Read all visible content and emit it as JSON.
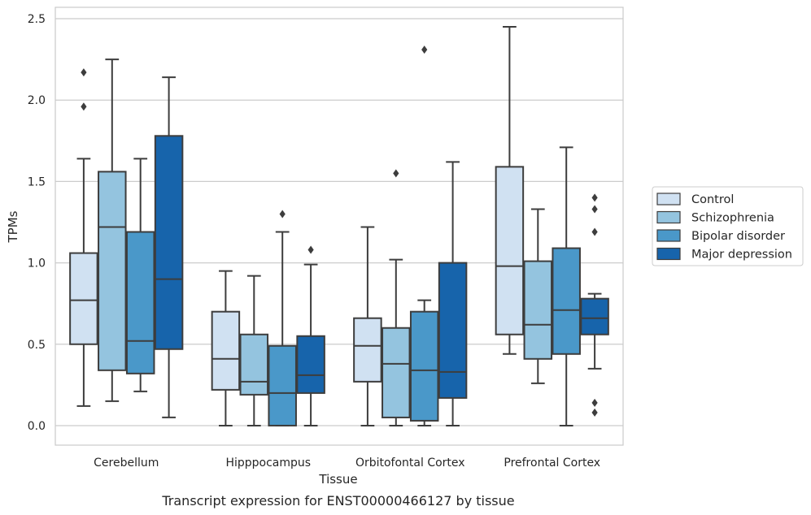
{
  "caption": "Transcript expression for ENST00000466127 by tissue",
  "chart_data": {
    "type": "box",
    "xlabel": "Tissue",
    "ylabel": "TPMs",
    "ylim": [
      -0.12,
      2.57
    ],
    "yticks": [
      0.0,
      0.5,
      1.0,
      1.5,
      2.0,
      2.5
    ],
    "ytick_labels": [
      "0.0",
      "0.5",
      "1.0",
      "1.5",
      "2.0",
      "2.5"
    ],
    "grid": "horizontal",
    "legend_position": "right",
    "categories": [
      "Cerebellum",
      "Hipppocampus",
      "Orbitofontal Cortex",
      "Prefrontal Cortex"
    ],
    "series": [
      {
        "name": "Control",
        "color": "#d0e1f2",
        "boxes": [
          {
            "whisker_low": 0.12,
            "q1": 0.5,
            "median": 0.77,
            "q3": 1.06,
            "whisker_high": 1.64,
            "outliers": [
              1.96,
              2.17
            ]
          },
          {
            "whisker_low": 0.0,
            "q1": 0.22,
            "median": 0.41,
            "q3": 0.7,
            "whisker_high": 0.95,
            "outliers": []
          },
          {
            "whisker_low": 0.0,
            "q1": 0.27,
            "median": 0.49,
            "q3": 0.66,
            "whisker_high": 1.22,
            "outliers": []
          },
          {
            "whisker_low": 0.44,
            "q1": 0.56,
            "median": 0.98,
            "q3": 1.59,
            "whisker_high": 2.45,
            "outliers": []
          }
        ]
      },
      {
        "name": "Schizophrenia",
        "color": "#94c4df",
        "boxes": [
          {
            "whisker_low": 0.15,
            "q1": 0.34,
            "median": 1.22,
            "q3": 1.56,
            "whisker_high": 2.25,
            "outliers": []
          },
          {
            "whisker_low": 0.0,
            "q1": 0.19,
            "median": 0.27,
            "q3": 0.56,
            "whisker_high": 0.92,
            "outliers": []
          },
          {
            "whisker_low": 0.0,
            "q1": 0.05,
            "median": 0.38,
            "q3": 0.6,
            "whisker_high": 1.02,
            "outliers": [
              1.55
            ]
          },
          {
            "whisker_low": 0.26,
            "q1": 0.41,
            "median": 0.62,
            "q3": 1.01,
            "whisker_high": 1.33,
            "outliers": []
          }
        ]
      },
      {
        "name": "Bipolar disorder",
        "color": "#4a98c9",
        "boxes": [
          {
            "whisker_low": 0.21,
            "q1": 0.32,
            "median": 0.52,
            "q3": 1.19,
            "whisker_high": 1.64,
            "outliers": []
          },
          {
            "whisker_low": 0.0,
            "q1": 0.0,
            "median": 0.2,
            "q3": 0.49,
            "whisker_high": 1.19,
            "outliers": [
              1.3
            ]
          },
          {
            "whisker_low": 0.0,
            "q1": 0.03,
            "median": 0.34,
            "q3": 0.7,
            "whisker_high": 0.77,
            "outliers": [
              2.31
            ]
          },
          {
            "whisker_low": 0.0,
            "q1": 0.44,
            "median": 0.71,
            "q3": 1.09,
            "whisker_high": 1.71,
            "outliers": []
          }
        ]
      },
      {
        "name": "Major depression",
        "color": "#1764ab",
        "boxes": [
          {
            "whisker_low": 0.05,
            "q1": 0.47,
            "median": 0.9,
            "q3": 1.78,
            "whisker_high": 2.14,
            "outliers": []
          },
          {
            "whisker_low": 0.0,
            "q1": 0.2,
            "median": 0.31,
            "q3": 0.55,
            "whisker_high": 0.99,
            "outliers": [
              1.08
            ]
          },
          {
            "whisker_low": 0.0,
            "q1": 0.17,
            "median": 0.33,
            "q3": 1.0,
            "whisker_high": 1.62,
            "outliers": []
          },
          {
            "whisker_low": 0.35,
            "q1": 0.56,
            "median": 0.66,
            "q3": 0.78,
            "whisker_high": 0.81,
            "outliers": [
              0.08,
              0.14,
              1.19,
              1.33,
              1.4
            ]
          }
        ]
      }
    ]
  }
}
